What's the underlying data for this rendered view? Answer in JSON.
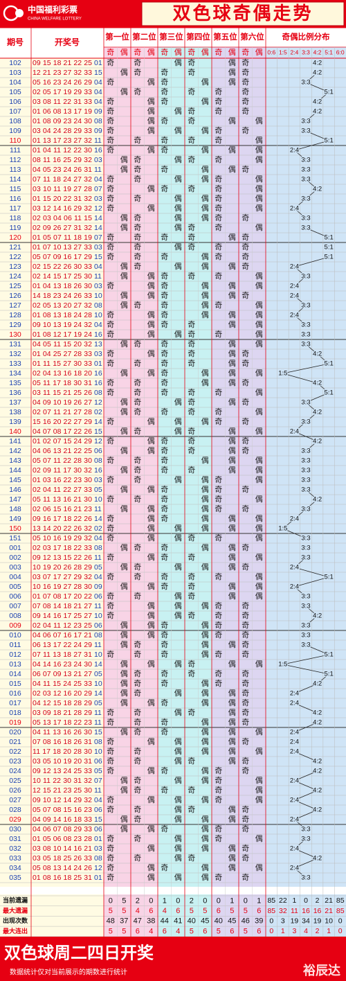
{
  "header": {
    "logo": "中国福利彩票",
    "logo_en": "CHINA WELFARE LOTTERY",
    "title": "双色球奇偶走势"
  },
  "table": {
    "columns": {
      "period": "期号",
      "numbers": "开奖号",
      "positions": [
        "第一位",
        "第二位",
        "第三位",
        "第四位",
        "第五位",
        "第六位"
      ],
      "parity": [
        "奇",
        "偶"
      ],
      "ratio_title": "奇偶比例分布",
      "ratios": [
        "0:6",
        "1:5",
        "2:4",
        "3:3",
        "4:2",
        "5:1",
        "6:0"
      ]
    },
    "rows": [
      {
        "period": "102",
        "reds": "09 15 18 21 22 25",
        "blue": "01"
      },
      {
        "period": "103",
        "reds": "12 21 23 27 32 33",
        "blue": "15"
      },
      {
        "period": "104",
        "reds": "05 16 23 24 26 29",
        "blue": "04"
      },
      {
        "period": "105",
        "reds": "02 05 17 19 29 33",
        "blue": "04"
      },
      {
        "period": "106",
        "reds": "03 08 11 22 31 33",
        "blue": "04"
      },
      {
        "period": "107",
        "reds": "01 06 08 13 17 19",
        "blue": "09"
      },
      {
        "period": "108",
        "reds": "01 08 09 23 24 30",
        "blue": "08"
      },
      {
        "period": "109",
        "reds": "03 04 24 28 29 33",
        "blue": "09"
      },
      {
        "period": "110",
        "reds": "01 13 17 23 27 32",
        "blue": "11"
      },
      {
        "period": "111",
        "reds": "01 04 11 12 22 30",
        "blue": "16"
      },
      {
        "period": "112",
        "reds": "08 11 16 25 29 32",
        "blue": "03"
      },
      {
        "period": "113",
        "reds": "04 05 23 24 26 31",
        "blue": "11"
      },
      {
        "period": "114",
        "reds": "07 11 18 24 27 32",
        "blue": "04"
      },
      {
        "period": "115",
        "reds": "03 10 11 19 27 28",
        "blue": "07"
      },
      {
        "period": "116",
        "reds": "01 15 20 22 31 32",
        "blue": "03"
      },
      {
        "period": "117",
        "reds": "03 12 14 16 29 32",
        "blue": "12"
      },
      {
        "period": "118",
        "reds": "02 03 04 06 11 15",
        "blue": "14"
      },
      {
        "period": "119",
        "reds": "02 09 26 27 31 32",
        "blue": "14"
      },
      {
        "period": "120",
        "reds": "01 05 07 11 18 19",
        "blue": "07"
      },
      {
        "period": "121",
        "reds": "01 07 10 13 27 33",
        "blue": "03"
      },
      {
        "period": "122",
        "reds": "05 07 09 16 17 29",
        "blue": "15"
      },
      {
        "period": "123",
        "reds": "02 15 22 26 30 33",
        "blue": "04"
      },
      {
        "period": "124",
        "reds": "02 14 15 17 25 30",
        "blue": "11"
      },
      {
        "period": "125",
        "reds": "01 04 13 18 26 30",
        "blue": "03"
      },
      {
        "period": "126",
        "reds": "14 18 23 24 26 33",
        "blue": "10"
      },
      {
        "period": "127",
        "reds": "02 05 13 20 27 32",
        "blue": "08"
      },
      {
        "period": "128",
        "reds": "01 08 13 18 24 28",
        "blue": "10"
      },
      {
        "period": "129",
        "reds": "09 10 13 19 24 32",
        "blue": "04"
      },
      {
        "period": "130",
        "reds": "01 08 12 17 19 24",
        "blue": "16"
      },
      {
        "period": "131",
        "reds": "04 05 11 15 20 32",
        "blue": "13"
      },
      {
        "period": "132",
        "reds": "01 04 25 27 28 33",
        "blue": "03"
      },
      {
        "period": "133",
        "reds": "01 11 15 27 30 33",
        "blue": "01"
      },
      {
        "period": "134",
        "reds": "02 04 13 16 18 20",
        "blue": "16"
      },
      {
        "period": "135",
        "reds": "05 11 17 18 30 31",
        "blue": "16"
      },
      {
        "period": "136",
        "reds": "03 11 15 21 25 26",
        "blue": "08"
      },
      {
        "period": "137",
        "reds": "04 09 10 19 26 27",
        "blue": "12"
      },
      {
        "period": "138",
        "reds": "02 07 11 21 27 28",
        "blue": "02"
      },
      {
        "period": "139",
        "reds": "15 16 20 22 27 29",
        "blue": "14"
      },
      {
        "period": "140",
        "reds": "04 07 08 17 22 26",
        "blue": "15"
      },
      {
        "period": "141",
        "reds": "01 02 07 15 24 29",
        "blue": "12"
      },
      {
        "period": "142",
        "reds": "04 06 13 21 22 25",
        "blue": "06"
      },
      {
        "period": "143",
        "reds": "05 07 11 22 28 30",
        "blue": "08"
      },
      {
        "period": "144",
        "reds": "02 09 11 17 30 32",
        "blue": "16"
      },
      {
        "period": "145",
        "reds": "01 03 16 22 23 30",
        "blue": "03"
      },
      {
        "period": "146",
        "reds": "02 04 11 22 27 33",
        "blue": "05"
      },
      {
        "period": "147",
        "reds": "05 11 13 16 21 30",
        "blue": "10"
      },
      {
        "period": "148",
        "reds": "02 06 15 16 21 23",
        "blue": "11"
      },
      {
        "period": "149",
        "reds": "09 16 17 18 22 26",
        "blue": "14"
      },
      {
        "period": "150",
        "reds": "13 14 20 22 26 32",
        "blue": "02"
      },
      {
        "period": "151",
        "reds": "05 10 16 19 29 32",
        "blue": "04"
      },
      {
        "period": "001",
        "reds": "02 03 17 18 22 33",
        "blue": "08"
      },
      {
        "period": "002",
        "reds": "09 12 13 15 22 26",
        "blue": "11"
      },
      {
        "period": "003",
        "reds": "10 19 20 26 28 29",
        "blue": "05"
      },
      {
        "period": "004",
        "reds": "03 07 17 27 29 32",
        "blue": "04"
      },
      {
        "period": "005",
        "reds": "10 16 19 27 28 30",
        "blue": "09"
      },
      {
        "period": "006",
        "reds": "01 07 08 17 20 22",
        "blue": "06"
      },
      {
        "period": "007",
        "reds": "07 08 14 18 21 27",
        "blue": "11"
      },
      {
        "period": "008",
        "reds": "09 14 16 17 25 27",
        "blue": "10"
      },
      {
        "period": "009",
        "reds": "02 04 11 12 23 25",
        "blue": "06"
      },
      {
        "period": "010",
        "reds": "04 06 07 16 17 21",
        "blue": "08"
      },
      {
        "period": "011",
        "reds": "06 13 17 22 24 29",
        "blue": "11"
      },
      {
        "period": "012",
        "reds": "07 11 13 18 27 31",
        "blue": "10"
      },
      {
        "period": "013",
        "reds": "04 14 16 23 24 30",
        "blue": "14"
      },
      {
        "period": "014",
        "reds": "06 07 09 13 21 27",
        "blue": "05"
      },
      {
        "period": "015",
        "reds": "04 11 15 24 25 33",
        "blue": "10"
      },
      {
        "period": "016",
        "reds": "02 03 12 16 20 29",
        "blue": "14"
      },
      {
        "period": "017",
        "reds": "04 12 15 18 28 29",
        "blue": "05"
      },
      {
        "period": "018",
        "reds": "03 09 18 21 28 29",
        "blue": "11"
      },
      {
        "period": "019",
        "reds": "05 13 17 18 22 23",
        "blue": "11"
      },
      {
        "period": "020",
        "reds": "04 11 13 16 26 30",
        "blue": "15"
      },
      {
        "period": "021",
        "reds": "07 08 16 18 26 31",
        "blue": "08"
      },
      {
        "period": "022",
        "reds": "11 17 18 20 28 30",
        "blue": "10"
      },
      {
        "period": "023",
        "reds": "03 05 10 19 20 31",
        "blue": "06"
      },
      {
        "period": "024",
        "reds": "09 12 13 24 25 33",
        "blue": "05"
      },
      {
        "period": "025",
        "reds": "10 11 22 30 31 32",
        "blue": "07"
      },
      {
        "period": "026",
        "reds": "12 15 21 23 25 30",
        "blue": "11"
      },
      {
        "period": "027",
        "reds": "09 10 12 14 29 32",
        "blue": "04"
      },
      {
        "period": "028",
        "reds": "05 07 08 15 16 23",
        "blue": "06"
      },
      {
        "period": "029",
        "reds": "04 09 14 16 18 33",
        "blue": "15"
      },
      {
        "period": "030",
        "reds": "04 06 07 08 29 33",
        "blue": "06"
      },
      {
        "period": "031",
        "reds": "01 05 06 08 23 28",
        "blue": "01"
      },
      {
        "period": "032",
        "reds": "03 08 10 14 16 21",
        "blue": "03"
      },
      {
        "period": "033",
        "reds": "03 05 18 25 26 33",
        "blue": "08"
      },
      {
        "period": "034",
        "reds": "05 08 13 14 24 26",
        "blue": "12"
      },
      {
        "period": "035",
        "reds": "01 08 16 18 25 31",
        "blue": "01"
      }
    ]
  },
  "stats": [
    {
      "label": "当前遗漏",
      "parity": [
        0,
        5,
        2,
        0,
        1,
        0,
        2,
        0,
        0,
        1,
        0,
        1
      ],
      "ratios": [
        85,
        22,
        1,
        0,
        2,
        21,
        85
      ]
    },
    {
      "label": "最大遗漏",
      "parity": [
        5,
        5,
        4,
        6,
        4,
        6,
        5,
        5,
        6,
        5,
        5,
        6
      ],
      "ratios": [
        85,
        32,
        11,
        16,
        16,
        21,
        85
      ]
    },
    {
      "label": "出现次数",
      "parity": [
        48,
        37,
        47,
        38,
        44,
        41,
        40,
        45,
        40,
        45,
        46,
        39
      ],
      "ratios": [
        0,
        3,
        19,
        34,
        19,
        10,
        0
      ]
    },
    {
      "label": "最大连出",
      "parity": [
        5,
        5,
        6,
        4,
        6,
        4,
        5,
        6,
        5,
        6,
        5,
        6
      ],
      "ratios": [
        0,
        1,
        3,
        4,
        2,
        1,
        0
      ]
    }
  ],
  "footer": {
    "headline": "双色球周二四日开奖",
    "note": "数据统计仅对当前展示的期数进行统计",
    "brand": "裕辰达"
  }
}
